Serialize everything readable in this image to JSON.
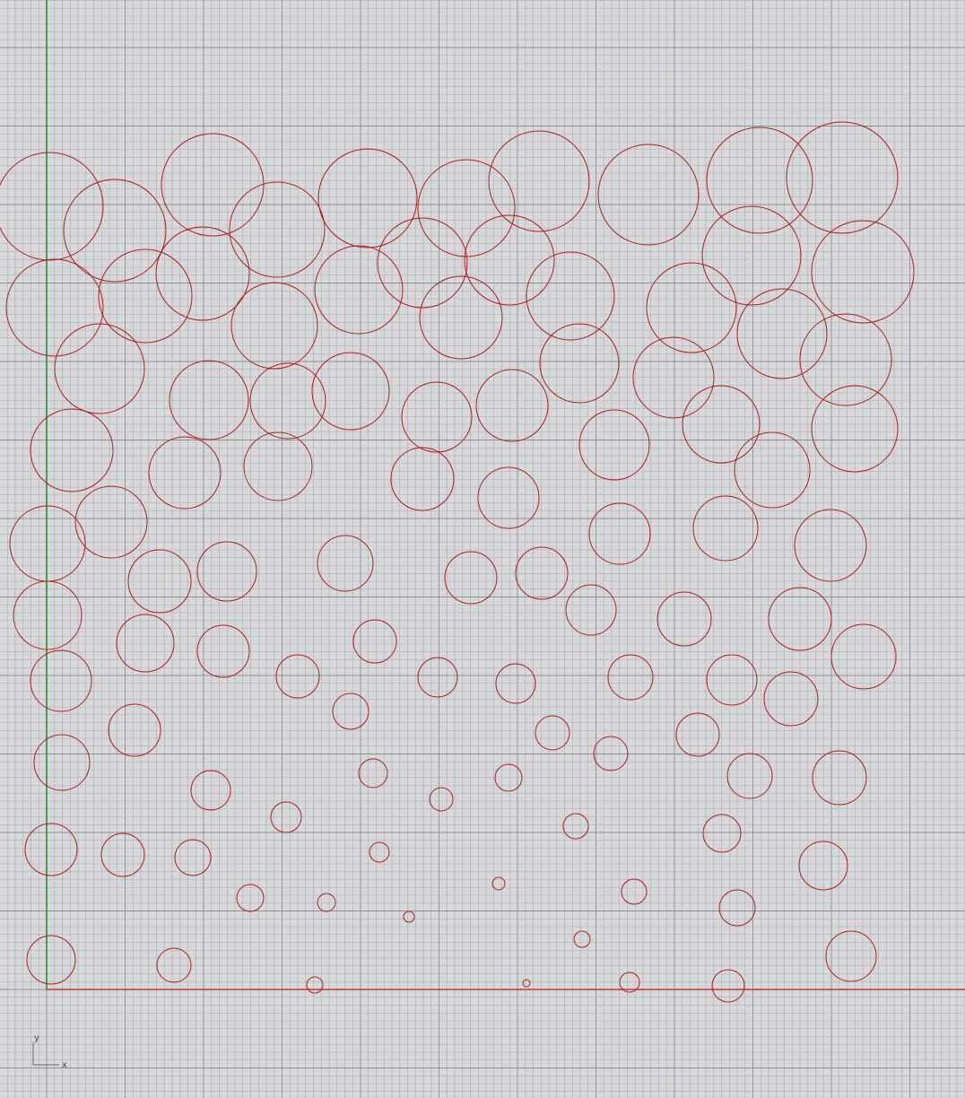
{
  "viewport": {
    "view": "top",
    "colors": {
      "background": "#d7d8da",
      "minor_grid": "#a9acb0",
      "major_grid": "#8c8f94",
      "x_axis": "#c0392b",
      "y_axis": "#2e8b3e",
      "curves": "#b01e1e"
    },
    "axis_widget": {
      "x_label": "x",
      "y_label": "y"
    }
  }
}
